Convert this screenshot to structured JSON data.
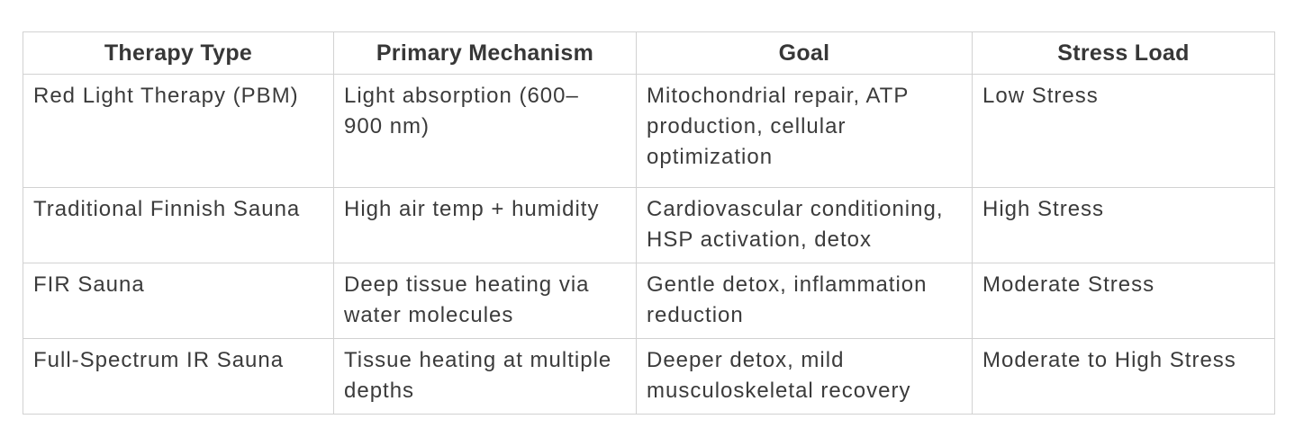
{
  "table": {
    "columns": [
      "Therapy Type",
      "Primary Mechanism",
      "Goal",
      "Stress Load"
    ],
    "rows": [
      [
        "Red Light Therapy (PBM)",
        "Light absorption (600–900 nm)",
        "Mitochondrial repair, ATP production, cellular optimization",
        "Low Stress"
      ],
      [
        "Traditional Finnish Sauna",
        "High air temp + humidity",
        "Cardiovascular conditioning, HSP activation, detox",
        "High Stress"
      ],
      [
        "FIR Sauna",
        "Deep tissue heating via water molecules",
        "Gentle detox, inflammation reduction",
        "Moderate Stress"
      ],
      [
        "Full-Spectrum IR Sauna",
        "Tissue heating at multiple depths",
        "Deeper detox, mild musculoskeletal recovery",
        "Moderate to High Stress"
      ]
    ],
    "colors": {
      "text": "#3b3b3b",
      "header_text": "#373737",
      "border": "#d2d2d2",
      "background": "#ffffff"
    }
  }
}
